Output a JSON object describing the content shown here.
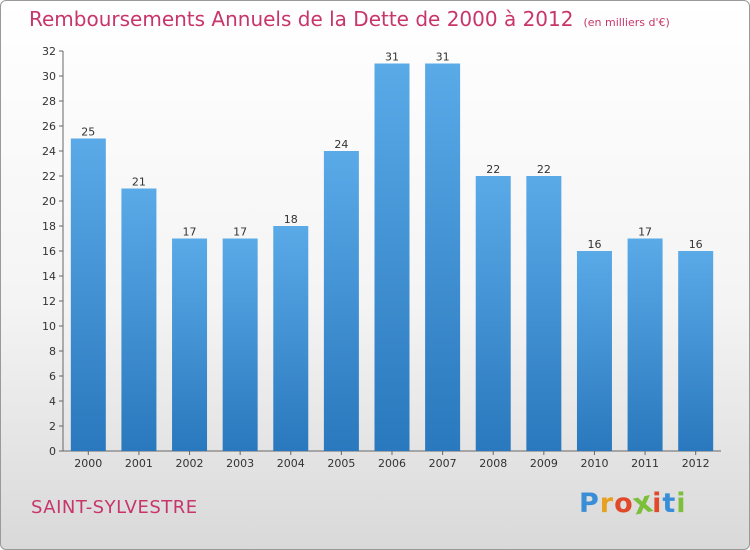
{
  "chart_data": {
    "type": "bar",
    "title": "Remboursements Annuels de la Dette de 2000 à 2012",
    "unit_note": "(en milliers d'€)",
    "categories": [
      "2000",
      "2001",
      "2002",
      "2003",
      "2004",
      "2005",
      "2006",
      "2007",
      "2008",
      "2009",
      "2010",
      "2011",
      "2012"
    ],
    "values": [
      25,
      21,
      17,
      17,
      18,
      24,
      31,
      31,
      22,
      22,
      16,
      17,
      16
    ],
    "ylim": [
      0,
      32
    ],
    "yticks": [
      0,
      2,
      4,
      6,
      8,
      10,
      12,
      14,
      16,
      18,
      20,
      22,
      24,
      26,
      28,
      30,
      32
    ],
    "grid": false,
    "bar_color_top": "#5aaae8",
    "bar_color_bottom": "#2a78bd"
  },
  "footer": {
    "commune": "SAINT-SYLVESTRE",
    "logo_letters": [
      "P",
      "r",
      "o",
      "x",
      "i",
      "t",
      "i"
    ],
    "logo_colors": [
      "#3a8ed8",
      "#e8a020",
      "#e04a2a",
      "#7bbf3a",
      "#e04a2a",
      "#3a8ed8",
      "#7bbf3a"
    ]
  }
}
